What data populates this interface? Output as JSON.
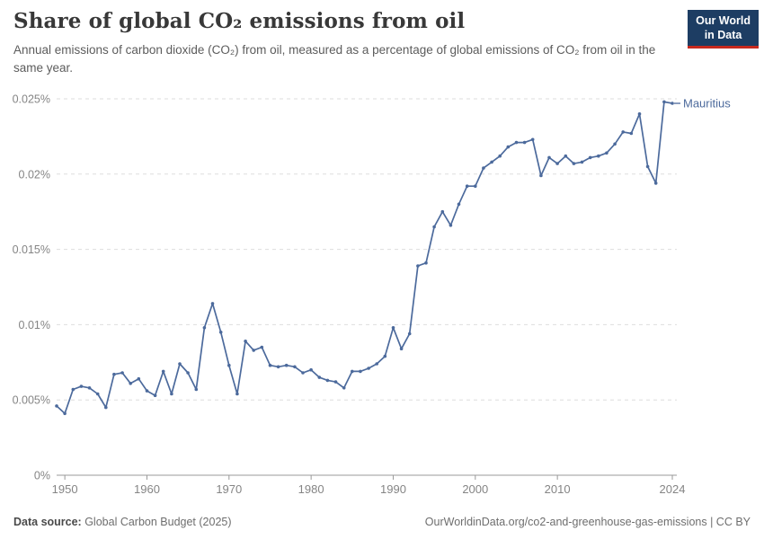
{
  "header": {
    "title": "Share of global CO₂ emissions from oil",
    "subtitle": "Annual emissions of carbon dioxide (CO₂) from oil, measured as a percentage of global emissions of CO₂ from oil in the same year."
  },
  "logo": {
    "line1": "Our World",
    "line2": "in Data",
    "bg_color": "#1d3d63",
    "accent_color": "#c7291e"
  },
  "footer": {
    "source_label": "Data source:",
    "source_value": " Global Carbon Budget (2025)",
    "right_text": "OurWorldinData.org/co2-and-greenhouse-gas-emissions | CC BY"
  },
  "chart_data": {
    "type": "line",
    "title": "Share of global CO₂ emissions from oil",
    "entity_label": "Mauritius",
    "line_color": "#4c6a9c",
    "axis_color": "#999999",
    "grid_color": "#dedede",
    "tick_label_color": "#858585",
    "ylim": [
      0,
      0.025
    ],
    "grid": "dashed horizontal",
    "legend_position": "end-of-line label",
    "yticks": [
      {
        "v": 0,
        "label": "0%"
      },
      {
        "v": 0.005,
        "label": "0.005%"
      },
      {
        "v": 0.01,
        "label": "0.01%"
      },
      {
        "v": 0.015,
        "label": "0.015%"
      },
      {
        "v": 0.02,
        "label": "0.02%"
      },
      {
        "v": 0.025,
        "label": "0.025%"
      }
    ],
    "xticks": [
      1950,
      1960,
      1970,
      1980,
      1990,
      2000,
      2010,
      2024
    ],
    "x_axis_range": [
      1949,
      2024
    ],
    "unit": "% of global CO₂ emissions from oil",
    "series": [
      {
        "name": "Mauritius",
        "years": [
          1949,
          1950,
          1951,
          1952,
          1953,
          1954,
          1955,
          1956,
          1957,
          1958,
          1959,
          1960,
          1961,
          1962,
          1963,
          1964,
          1965,
          1966,
          1967,
          1968,
          1969,
          1970,
          1971,
          1972,
          1973,
          1974,
          1975,
          1976,
          1977,
          1978,
          1979,
          1980,
          1981,
          1982,
          1983,
          1984,
          1985,
          1986,
          1987,
          1988,
          1989,
          1990,
          1991,
          1992,
          1993,
          1994,
          1995,
          1996,
          1997,
          1998,
          1999,
          2000,
          2001,
          2002,
          2003,
          2004,
          2005,
          2006,
          2007,
          2008,
          2009,
          2010,
          2011,
          2012,
          2013,
          2014,
          2015,
          2016,
          2017,
          2018,
          2019,
          2020,
          2021,
          2022,
          2023,
          2024
        ],
        "values": [
          0.0046,
          0.0041,
          0.0057,
          0.0059,
          0.0058,
          0.0054,
          0.0045,
          0.0067,
          0.0068,
          0.0061,
          0.0064,
          0.0056,
          0.0053,
          0.0069,
          0.0054,
          0.0074,
          0.0068,
          0.0057,
          0.0098,
          0.0114,
          0.0095,
          0.0073,
          0.0054,
          0.0089,
          0.0083,
          0.0085,
          0.0073,
          0.0072,
          0.0073,
          0.0072,
          0.0068,
          0.007,
          0.0065,
          0.0063,
          0.0062,
          0.0058,
          0.0069,
          0.0069,
          0.0071,
          0.0074,
          0.0079,
          0.0098,
          0.0084,
          0.0094,
          0.0139,
          0.0141,
          0.0165,
          0.0175,
          0.0166,
          0.018,
          0.0192,
          0.0192,
          0.0204,
          0.0208,
          0.0212,
          0.0218,
          0.0221,
          0.0221,
          0.0223,
          0.0199,
          0.0211,
          0.0207,
          0.0212,
          0.0207,
          0.0208,
          0.0211,
          0.0212,
          0.0214,
          0.022,
          0.0228,
          0.0227,
          0.024,
          0.0205,
          0.0194,
          0.0248,
          0.0247
        ]
      }
    ]
  }
}
